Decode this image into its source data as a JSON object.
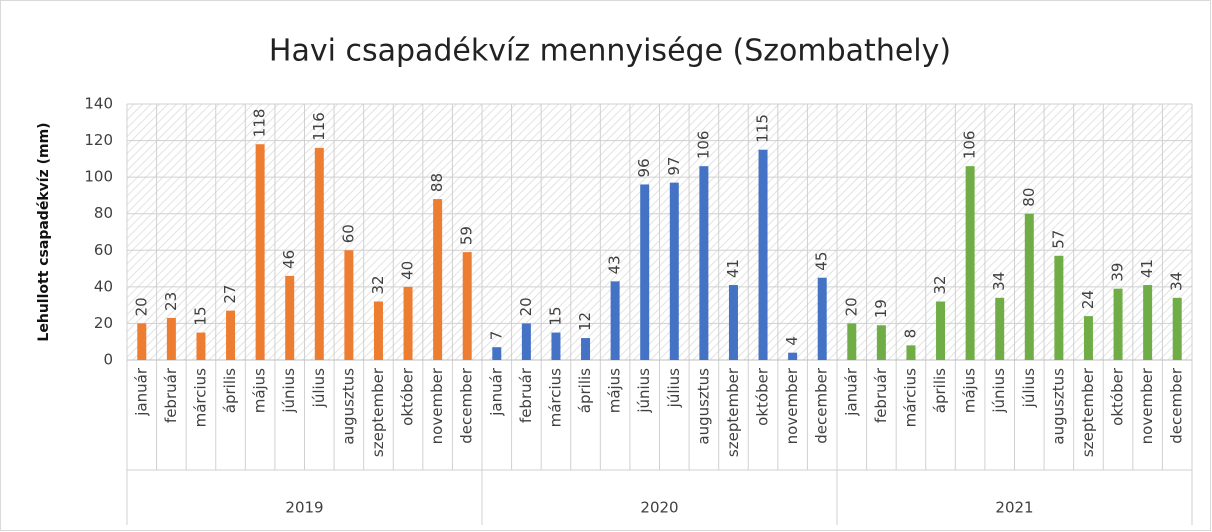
{
  "chart_data": {
    "type": "bar",
    "title": "Havi csapadékvíz mennyisége (Szombathely)",
    "y_label": "Lehullott csapadékvíz (mm)",
    "categories": [
      "január",
      "február",
      "március",
      "április",
      "május",
      "június",
      "július",
      "augusztus",
      "szeptember",
      "október",
      "november",
      "december"
    ],
    "series": [
      {
        "name": "2019",
        "color": "#ED7D31",
        "values": [
          20,
          23,
          15,
          27,
          118,
          46,
          116,
          60,
          32,
          40,
          88,
          59
        ]
      },
      {
        "name": "2020",
        "color": "#4472C4",
        "values": [
          7,
          20,
          15,
          12,
          43,
          96,
          97,
          106,
          41,
          115,
          4,
          45
        ]
      },
      {
        "name": "2021",
        "color": "#70AD47",
        "values": [
          20,
          19,
          8,
          32,
          106,
          34,
          80,
          57,
          24,
          39,
          41,
          34
        ]
      }
    ],
    "ylim": [
      0,
      140
    ],
    "yticks": [
      0,
      20,
      40,
      60,
      80,
      100,
      120,
      140
    ],
    "grid": true
  }
}
